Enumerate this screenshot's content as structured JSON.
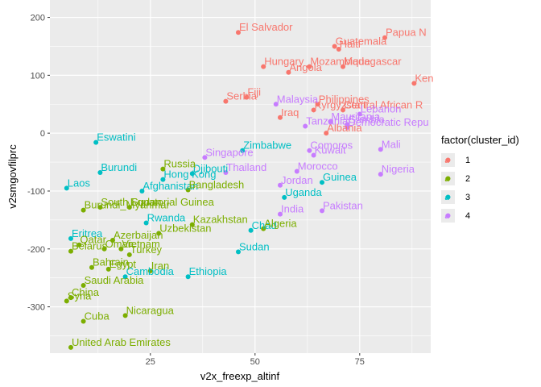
{
  "chart_data": {
    "type": "scatter",
    "xlabel": "v2x_freexp_altinf",
    "ylabel": "v2smgovfilprc",
    "xlim": [
      1,
      92
    ],
    "ylim": [
      -380,
      200
    ],
    "x_ticks": [
      25,
      50,
      75
    ],
    "y_ticks": [
      -300,
      -200,
      -100,
      0,
      100,
      200
    ],
    "grid": true,
    "legend": {
      "title": "factor(cluster_id)",
      "placement": "right",
      "entries": [
        {
          "label": "1",
          "color": "#F8766D"
        },
        {
          "label": "2",
          "color": "#7CAE00"
        },
        {
          "label": "3",
          "color": "#00BFC4"
        },
        {
          "label": "4",
          "color": "#C77CFF"
        }
      ]
    },
    "points": [
      {
        "label": "El Salvador",
        "x": 46,
        "y": 174,
        "cluster": "1"
      },
      {
        "label": "Papua N",
        "x": 81,
        "y": 165,
        "cluster": "1"
      },
      {
        "label": "Guatemala",
        "x": 69,
        "y": 150,
        "cluster": "1"
      },
      {
        "label": "Haiti",
        "x": 70,
        "y": 145,
        "cluster": "1"
      },
      {
        "label": "Hungary",
        "x": 52,
        "y": 115,
        "cluster": "1"
      },
      {
        "label": "Mozambique",
        "x": 63,
        "y": 115,
        "cluster": "1"
      },
      {
        "label": "Madagascar",
        "x": 71,
        "y": 115,
        "cluster": "1"
      },
      {
        "label": "Angola",
        "x": 58,
        "y": 105,
        "cluster": "1"
      },
      {
        "label": "Ken",
        "x": 88,
        "y": 86,
        "cluster": "1"
      },
      {
        "label": "Fiji",
        "x": 48,
        "y": 62,
        "cluster": "1"
      },
      {
        "label": "Serbia",
        "x": 43,
        "y": 55,
        "cluster": "1"
      },
      {
        "label": "Philippines",
        "x": 65,
        "y": 50,
        "cluster": "1"
      },
      {
        "label": "Kyrgyzstan",
        "x": 64,
        "y": 40,
        "cluster": "1"
      },
      {
        "label": "Central African R",
        "x": 71,
        "y": 40,
        "cluster": "1"
      },
      {
        "label": "Iraq",
        "x": 56,
        "y": 27,
        "cluster": "1"
      },
      {
        "label": "Albania",
        "x": 67,
        "y": 0,
        "cluster": "1"
      },
      {
        "label": "Malaysia",
        "x": 55,
        "y": 50,
        "cluster": "4"
      },
      {
        "label": "Lebanon",
        "x": 75,
        "y": 33,
        "cluster": "4"
      },
      {
        "label": "Tanzania",
        "x": 62,
        "y": 12,
        "cluster": "4"
      },
      {
        "label": "Mauritania",
        "x": 68,
        "y": 20,
        "cluster": "4"
      },
      {
        "label": "Gambia",
        "x": 72,
        "y": 15,
        "cluster": "4"
      },
      {
        "label": "Democratic Repu",
        "x": 72,
        "y": 10,
        "cluster": "4"
      },
      {
        "label": "Mali",
        "x": 80,
        "y": -28,
        "cluster": "4"
      },
      {
        "label": "Comoros",
        "x": 63,
        "y": -30,
        "cluster": "4"
      },
      {
        "label": "Kuwait",
        "x": 64,
        "y": -38,
        "cluster": "4"
      },
      {
        "label": "Singapore",
        "x": 38,
        "y": -42,
        "cluster": "4"
      },
      {
        "label": "Thailand",
        "x": 43,
        "y": -68,
        "cluster": "4"
      },
      {
        "label": "Morocco",
        "x": 60,
        "y": -66,
        "cluster": "4"
      },
      {
        "label": "Nigeria",
        "x": 80,
        "y": -71,
        "cluster": "4"
      },
      {
        "label": "Jordan",
        "x": 56,
        "y": -90,
        "cluster": "4"
      },
      {
        "label": "India",
        "x": 56,
        "y": -140,
        "cluster": "4"
      },
      {
        "label": "Pakistan",
        "x": 66,
        "y": -134,
        "cluster": "4"
      },
      {
        "label": "Zimbabwe",
        "x": 47,
        "y": -30,
        "cluster": "3"
      },
      {
        "label": "Eswatini",
        "x": 12,
        "y": -16,
        "cluster": "3"
      },
      {
        "label": "Burundi",
        "x": 13,
        "y": -68,
        "cluster": "3"
      },
      {
        "label": "Djibouti",
        "x": 35,
        "y": -70,
        "cluster": "3"
      },
      {
        "label": "Hong Kong",
        "x": 28,
        "y": -80,
        "cluster": "3"
      },
      {
        "label": "Laos",
        "x": 5,
        "y": -95,
        "cluster": "3"
      },
      {
        "label": "Afghanistan",
        "x": 23,
        "y": -100,
        "cluster": "3"
      },
      {
        "label": "Guinea",
        "x": 66,
        "y": -85,
        "cluster": "3"
      },
      {
        "label": "Uganda",
        "x": 57,
        "y": -111,
        "cluster": "3"
      },
      {
        "label": "Rwanda",
        "x": 24,
        "y": -155,
        "cluster": "3"
      },
      {
        "label": "Chad",
        "x": 49,
        "y": -168,
        "cluster": "3"
      },
      {
        "label": "Eritrea",
        "x": 6,
        "y": -182,
        "cluster": "3"
      },
      {
        "label": "Sudan",
        "x": 46,
        "y": -205,
        "cluster": "3"
      },
      {
        "label": "Cambodia",
        "x": 19,
        "y": -248,
        "cluster": "3"
      },
      {
        "label": "Ethiopia",
        "x": 34,
        "y": -248,
        "cluster": "3"
      },
      {
        "label": "Russia",
        "x": 28,
        "y": -62,
        "cluster": "2"
      },
      {
        "label": "Bangladesh",
        "x": 34,
        "y": -98,
        "cluster": "2"
      },
      {
        "label": "South Sudan",
        "x": 13,
        "y": -128,
        "cluster": "2"
      },
      {
        "label": "Equatorial Guinea",
        "x": 20,
        "y": -128,
        "cluster": "2"
      },
      {
        "label": "Burundi_Myanmar",
        "x": 9,
        "y": -133,
        "cluster": "2"
      },
      {
        "label": "Kazakhstan",
        "x": 35,
        "y": -158,
        "cluster": "2"
      },
      {
        "label": "Uzbekistan",
        "x": 27,
        "y": -173,
        "cluster": "2"
      },
      {
        "label": "Algeria",
        "x": 52,
        "y": -165,
        "cluster": "2"
      },
      {
        "label": "Azerbaijan",
        "x": 16,
        "y": -185,
        "cluster": "2"
      },
      {
        "label": "Qatar",
        "x": 8,
        "y": -193,
        "cluster": "2"
      },
      {
        "label": "Belarus",
        "x": 6,
        "y": -204,
        "cluster": "2"
      },
      {
        "label": "Oman",
        "x": 14,
        "y": -200,
        "cluster": "2"
      },
      {
        "label": "Vietnam",
        "x": 18,
        "y": -200,
        "cluster": "2"
      },
      {
        "label": "Turkey",
        "x": 20,
        "y": -210,
        "cluster": "2"
      },
      {
        "label": "Bahrain",
        "x": 11,
        "y": -232,
        "cluster": "2"
      },
      {
        "label": "Egypt",
        "x": 15,
        "y": -235,
        "cluster": "2"
      },
      {
        "label": "Iran",
        "x": 25,
        "y": -238,
        "cluster": "2"
      },
      {
        "label": "Saudi Arabia",
        "x": 9,
        "y": -263,
        "cluster": "2"
      },
      {
        "label": "China",
        "x": 6,
        "y": -284,
        "cluster": "2"
      },
      {
        "label": "Syria",
        "x": 5,
        "y": -290,
        "cluster": "2"
      },
      {
        "label": "Cuba",
        "x": 9,
        "y": -325,
        "cluster": "2"
      },
      {
        "label": "Nicaragua",
        "x": 19,
        "y": -315,
        "cluster": "2"
      },
      {
        "label": "United Arab Emirates",
        "x": 6,
        "y": -370,
        "cluster": "2"
      }
    ]
  }
}
